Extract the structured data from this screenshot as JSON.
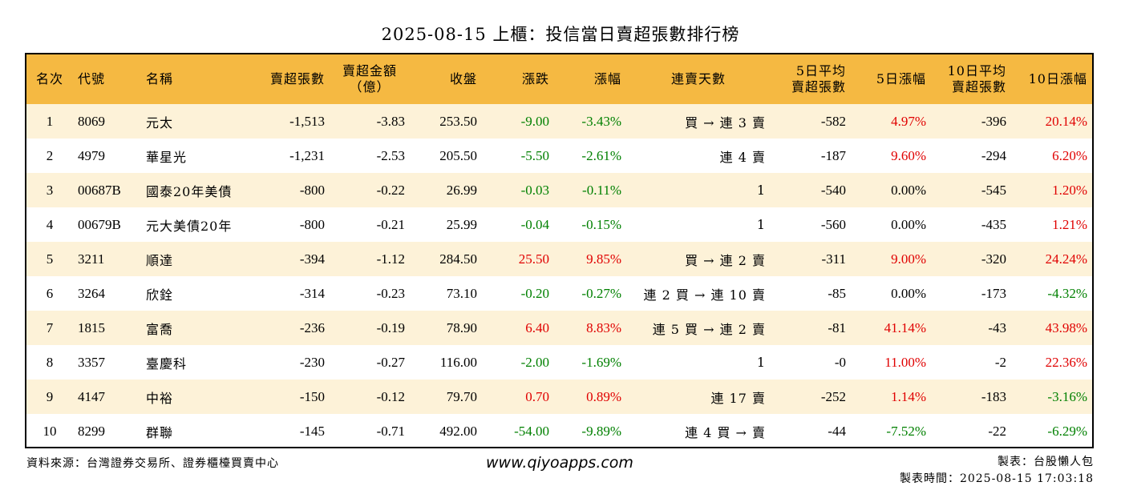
{
  "title": "2025-08-15 上櫃：投信當日賣超張數排行榜",
  "headers": {
    "rank": "名次",
    "code": "代號",
    "name": "名稱",
    "sell_lots": "賣超張數",
    "sell_amount": "賣超金額\n（億）",
    "close": "收盤",
    "change": "漲跌",
    "pct": "漲幅",
    "streak": "連賣天數",
    "avg5": "5日平均\n賣超張數",
    "pct5": "5日漲幅",
    "avg10": "10日平均\n賣超張數",
    "pct10": "10日漲幅"
  },
  "rows": [
    {
      "rank": "1",
      "code": "8069",
      "name": "元太",
      "sell_lots": "-1,513",
      "sell_amount": "-3.83",
      "close": "253.50",
      "change": "-9.00",
      "pct": "-3.43%",
      "streak": "買 → 連 3 賣",
      "avg5": "-582",
      "pct5": "4.97%",
      "avg10": "-396",
      "pct10": "20.14%"
    },
    {
      "rank": "2",
      "code": "4979",
      "name": "華星光",
      "sell_lots": "-1,231",
      "sell_amount": "-2.53",
      "close": "205.50",
      "change": "-5.50",
      "pct": "-2.61%",
      "streak": "連 4 賣",
      "avg5": "-187",
      "pct5": "9.60%",
      "avg10": "-294",
      "pct10": "6.20%"
    },
    {
      "rank": "3",
      "code": "00687B",
      "name": "國泰20年美債",
      "sell_lots": "-800",
      "sell_amount": "-0.22",
      "close": "26.99",
      "change": "-0.03",
      "pct": "-0.11%",
      "streak": "1",
      "avg5": "-540",
      "pct5": "0.00%",
      "avg10": "-545",
      "pct10": "1.20%"
    },
    {
      "rank": "4",
      "code": "00679B",
      "name": "元大美債20年",
      "sell_lots": "-800",
      "sell_amount": "-0.21",
      "close": "25.99",
      "change": "-0.04",
      "pct": "-0.15%",
      "streak": "1",
      "avg5": "-560",
      "pct5": "0.00%",
      "avg10": "-435",
      "pct10": "1.21%"
    },
    {
      "rank": "5",
      "code": "3211",
      "name": "順達",
      "sell_lots": "-394",
      "sell_amount": "-1.12",
      "close": "284.50",
      "change": "25.50",
      "pct": "9.85%",
      "streak": "買 → 連 2 賣",
      "avg5": "-311",
      "pct5": "9.00%",
      "avg10": "-320",
      "pct10": "24.24%"
    },
    {
      "rank": "6",
      "code": "3264",
      "name": "欣銓",
      "sell_lots": "-314",
      "sell_amount": "-0.23",
      "close": "73.10",
      "change": "-0.20",
      "pct": "-0.27%",
      "streak": "連 2 買 → 連 10 賣",
      "avg5": "-85",
      "pct5": "0.00%",
      "avg10": "-173",
      "pct10": "-4.32%"
    },
    {
      "rank": "7",
      "code": "1815",
      "name": "富喬",
      "sell_lots": "-236",
      "sell_amount": "-0.19",
      "close": "78.90",
      "change": "6.40",
      "pct": "8.83%",
      "streak": "連 5 買 → 連 2 賣",
      "avg5": "-81",
      "pct5": "41.14%",
      "avg10": "-43",
      "pct10": "43.98%"
    },
    {
      "rank": "8",
      "code": "3357",
      "name": "臺慶科",
      "sell_lots": "-230",
      "sell_amount": "-0.27",
      "close": "116.00",
      "change": "-2.00",
      "pct": "-1.69%",
      "streak": "1",
      "avg5": "-0",
      "pct5": "11.00%",
      "avg10": "-2",
      "pct10": "22.36%"
    },
    {
      "rank": "9",
      "code": "4147",
      "name": "中裕",
      "sell_lots": "-150",
      "sell_amount": "-0.12",
      "close": "79.70",
      "change": "0.70",
      "pct": "0.89%",
      "streak": "連 17 賣",
      "avg5": "-252",
      "pct5": "1.14%",
      "avg10": "-183",
      "pct10": "-3.16%"
    },
    {
      "rank": "10",
      "code": "8299",
      "name": "群聯",
      "sell_lots": "-145",
      "sell_amount": "-0.71",
      "close": "492.00",
      "change": "-54.00",
      "pct": "-9.89%",
      "streak": "連 4 買 → 賣",
      "avg5": "-44",
      "pct5": "-7.52%",
      "avg10": "-22",
      "pct10": "-6.29%"
    }
  ],
  "footer": {
    "source": "資料來源：台灣證券交易所、證券櫃檯買賣中心",
    "website": "www.qiyoapps.com",
    "author": "製表：台股懶人包",
    "time": "製表時間：2025-08-15 17:03:18"
  },
  "colors": {
    "header_bg": "#f5b942",
    "odd_row_bg": "#fdf2d8",
    "up": "#e00000",
    "down": "#008000"
  }
}
